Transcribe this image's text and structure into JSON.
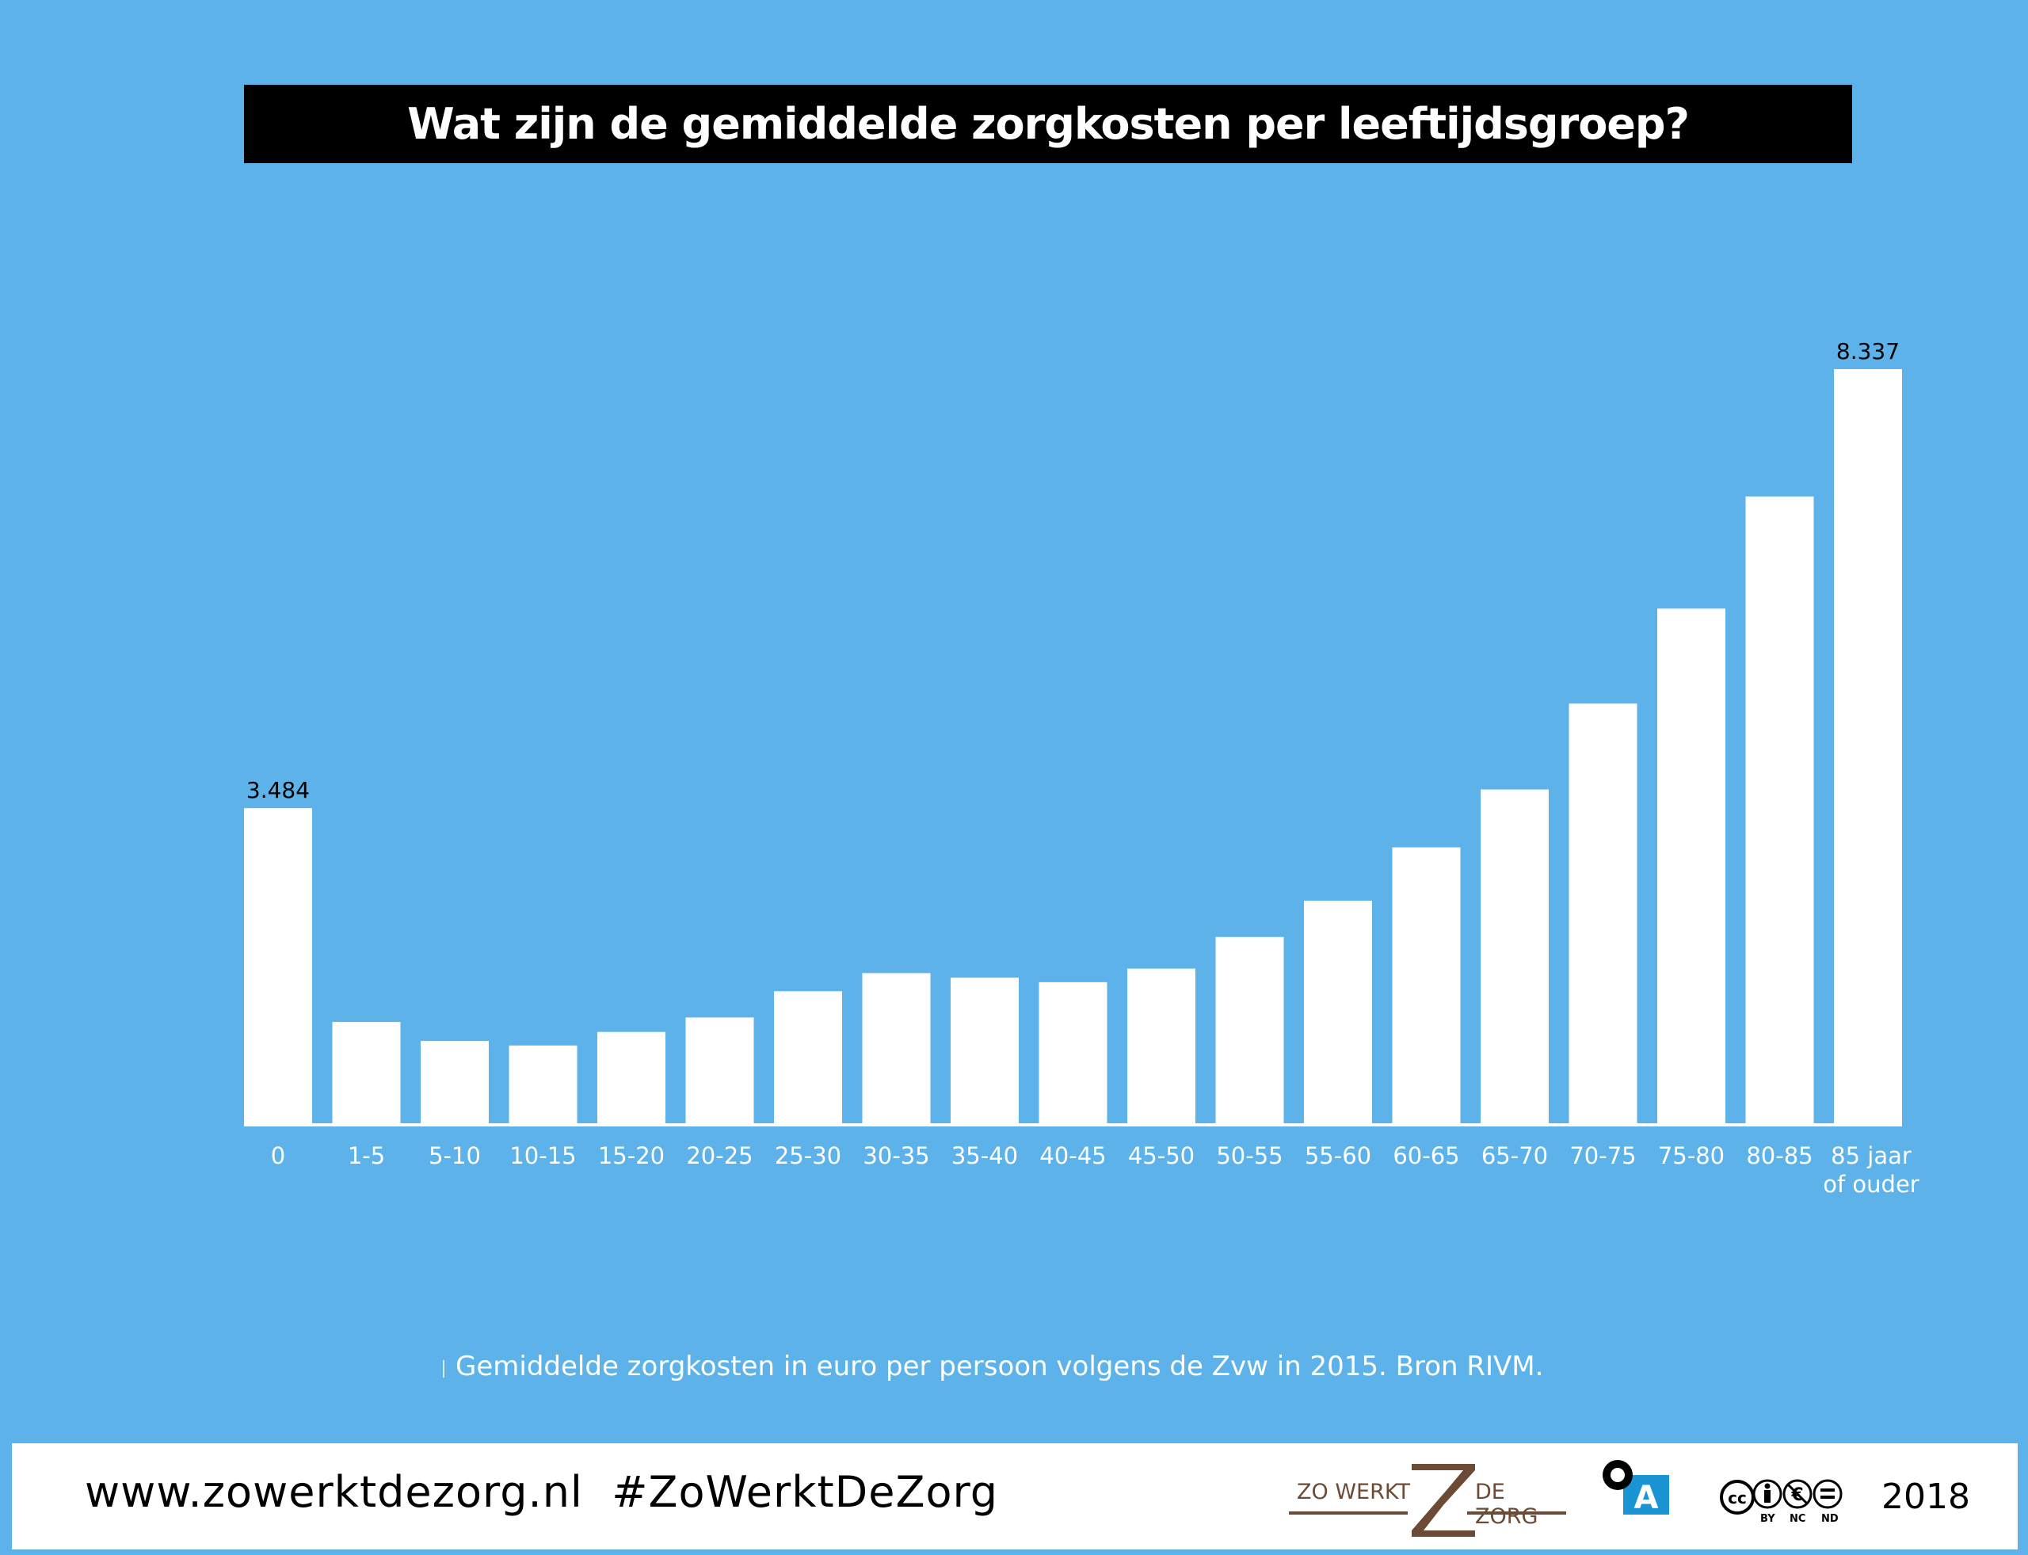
{
  "title": "Wat zijn de gemiddelde zorgkosten per leeftijdsgroep?",
  "caption": "Gemiddelde zorgkosten in euro per persoon volgens de Zvw in 2015. Bron RIVM.",
  "footer": {
    "url": "www.zowerktdezorg.nl",
    "hashtag": "#ZoWerktDeZorg",
    "logo_left": "ZO WERKT",
    "logo_right": "DE ZORG",
    "badge_letter": "A",
    "license_labels": [
      "BY",
      "NC",
      "ND"
    ],
    "license_cc": "cc",
    "year": "2018"
  },
  "colors": {
    "background": "#5db3e9",
    "bars": "#ffffff",
    "title_bg": "#000000",
    "logo_brown": "#6b4a36",
    "badge_blue": "#1b94d4"
  },
  "chart_data": {
    "type": "bar",
    "categories": [
      [
        "0"
      ],
      [
        "1-5"
      ],
      [
        "5-10"
      ],
      [
        "10-15"
      ],
      [
        "15-20"
      ],
      [
        "20-25"
      ],
      [
        "25-30"
      ],
      [
        "30-35"
      ],
      [
        "35-40"
      ],
      [
        "40-45"
      ],
      [
        "45-50"
      ],
      [
        "50-55"
      ],
      [
        "55-60"
      ],
      [
        "60-65"
      ],
      [
        "65-70"
      ],
      [
        "70-75"
      ],
      [
        "75-80"
      ],
      [
        "80-85"
      ],
      [
        "85 jaar",
        "of ouder"
      ]
    ],
    "values": [
      3484,
      1120,
      910,
      860,
      1010,
      1170,
      1460,
      1660,
      1610,
      1560,
      1710,
      2060,
      2460,
      3050,
      3690,
      4640,
      5690,
      6930,
      8337
    ],
    "data_labels": {
      "0": "3.484",
      "18": "8.337"
    },
    "ylim": [
      0,
      8337
    ],
    "grid": false,
    "legend": "none"
  }
}
